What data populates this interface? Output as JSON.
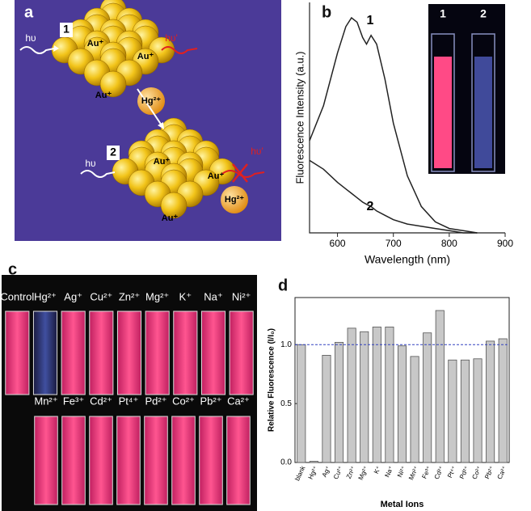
{
  "panel_labels": [
    "a",
    "b",
    "c",
    "d"
  ],
  "diagram": {
    "texts": [
      "1",
      "hυ",
      "hυ'",
      "Au⁺",
      "Au⁺",
      "Au⁺",
      "Hg²⁺",
      "2",
      "hυ",
      "hυ'",
      "Au⁺",
      "Au⁺",
      "Au⁺",
      "Hg²⁺"
    ]
  },
  "photo_b_inset": {
    "labels": [
      "1",
      "2"
    ]
  },
  "photo_c": {
    "top_row": [
      "Control",
      "Hg²⁺",
      "Ag⁺",
      "Cu²⁺",
      "Zn²⁺",
      "Mg²⁺",
      "K⁺",
      "Na⁺",
      "Ni²⁺"
    ],
    "bottom_row": [
      "Mn²⁺",
      "Fe³⁺",
      "Cd²⁺",
      "Pt⁴⁺",
      "Pd²⁺",
      "Co²⁺",
      "Pb²⁺",
      "Ca²⁺"
    ]
  },
  "chart_data": [
    {
      "type": "line",
      "xlabel": "Wavelength (nm)",
      "ylabel": "Fluorescence Intensity (a.u.)",
      "x": [
        550,
        575,
        600,
        615,
        625,
        635,
        645,
        652,
        660,
        670,
        685,
        700,
        725,
        750,
        775,
        800,
        825,
        850
      ],
      "series": [
        {
          "name": "1",
          "color": "#222222",
          "values": [
            0.42,
            0.58,
            0.82,
            0.94,
            0.98,
            0.96,
            0.89,
            0.86,
            0.9,
            0.86,
            0.7,
            0.5,
            0.26,
            0.12,
            0.05,
            0.02,
            0.01,
            0.0
          ]
        },
        {
          "name": "2",
          "color": "#222222",
          "values": [
            0.33,
            0.29,
            0.23,
            0.2,
            0.18,
            0.16,
            0.14,
            0.13,
            0.12,
            0.1,
            0.08,
            0.06,
            0.04,
            0.03,
            0.02,
            0.01,
            0.0,
            0.0
          ]
        }
      ],
      "xlim": [
        550,
        900
      ],
      "xticks": [
        600,
        700,
        800,
        900
      ],
      "ylim": [
        0,
        1.05
      ]
    },
    {
      "type": "bar",
      "xlabel": "Metal Ions",
      "ylabel": "Relative Fluorescence (I/I₀)",
      "categories": [
        "blank",
        "Hg²⁺",
        "Ag⁺",
        "Cu²⁺",
        "Zn²⁺",
        "Mg²⁺",
        "K⁺",
        "Na⁺",
        "Ni²⁺",
        "Mn²⁺",
        "Fe³⁺",
        "Cd²⁺",
        "Pt⁴⁺",
        "Pd²⁺",
        "Co²⁺",
        "Pb²⁺",
        "Ca²⁺"
      ],
      "values": [
        1.0,
        0.01,
        0.91,
        1.02,
        1.14,
        1.11,
        1.15,
        1.15,
        0.99,
        0.9,
        1.1,
        1.29,
        0.87,
        0.87,
        0.88,
        1.03,
        1.05
      ],
      "color": "#c8c8c8",
      "reference_line": 1.0,
      "ylim": [
        0,
        1.4
      ],
      "yticks": [
        {
          "value": 0,
          "label": "0.0"
        },
        {
          "value": 0.5,
          "label": "0.5"
        },
        {
          "value": 1,
          "label": "1.0"
        }
      ]
    }
  ]
}
